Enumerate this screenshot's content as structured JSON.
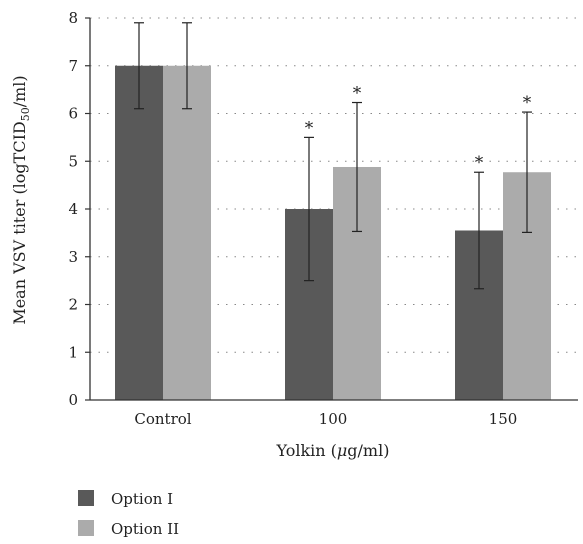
{
  "chart_data": {
    "type": "bar",
    "categories": [
      "Control",
      "100",
      "150"
    ],
    "series": [
      {
        "name": "Option I",
        "values": [
          7.0,
          4.0,
          3.55
        ],
        "error": [
          0.9,
          1.5,
          1.22
        ],
        "significance": [
          "",
          "*",
          "*"
        ]
      },
      {
        "name": "Option II",
        "values": [
          7.0,
          4.88,
          4.77
        ],
        "error": [
          0.9,
          1.35,
          1.26
        ],
        "significance": [
          "",
          "*",
          "*"
        ]
      }
    ],
    "xlabel": {
      "main": "Yolkin (",
      "mu": "μ",
      "rest": "g/ml)"
    },
    "ylabel": {
      "main": "Mean VSV titer (logTCID",
      "sub": "50",
      "rest": "/ml)"
    },
    "ylim": [
      0,
      8
    ],
    "yticks": [
      0,
      1,
      2,
      3,
      4,
      5,
      6,
      7,
      8
    ],
    "grid": "horizontal-dotted",
    "legend_position": "bottom-left",
    "colors": {
      "series_1": "#595959",
      "series_2": "#ababab",
      "axis": "#333333",
      "grid": "#888888",
      "error_bar": "#222222"
    }
  }
}
